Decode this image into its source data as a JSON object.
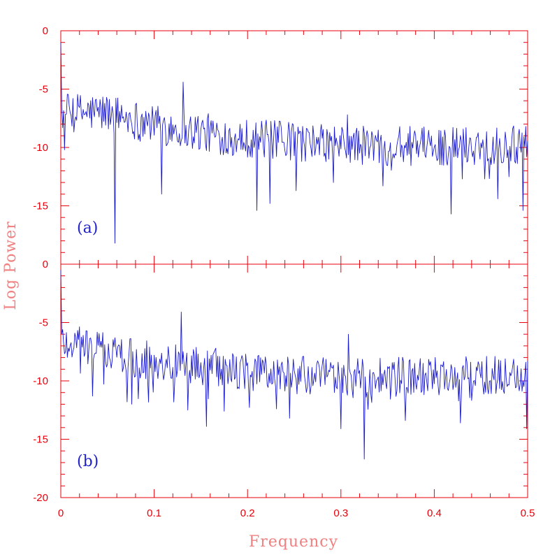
{
  "chart_data": [
    {
      "type": "line",
      "panel_label": "(a)",
      "xlim": [
        0,
        0.5
      ],
      "ylim": [
        -20,
        0
      ],
      "y_ticks": [
        0,
        -5,
        -10,
        -15
      ],
      "x_ticks": [
        0,
        0.1,
        0.2,
        0.3,
        0.4,
        0.5
      ],
      "series": [
        {
          "color": "#1a1acc",
          "spikes": [
            {
              "x": 0.0,
              "y": -1.0
            },
            {
              "x": 0.004,
              "y": -10.2
            },
            {
              "x": 0.058,
              "y": -18.2
            },
            {
              "x": 0.108,
              "y": -14.0
            },
            {
              "x": 0.131,
              "y": -4.4
            },
            {
              "x": 0.21,
              "y": -15.4
            },
            {
              "x": 0.224,
              "y": -14.8
            },
            {
              "x": 0.252,
              "y": -13.7
            },
            {
              "x": 0.292,
              "y": -13.0
            },
            {
              "x": 0.307,
              "y": -7.2
            },
            {
              "x": 0.345,
              "y": -13.3
            },
            {
              "x": 0.418,
              "y": -15.7
            },
            {
              "x": 0.468,
              "y": -14.4
            },
            {
              "x": 0.495,
              "y": -15.4
            }
          ],
          "trend": [
            {
              "x": 0.0,
              "y": -7.0
            },
            {
              "x": 0.05,
              "y": -7.0
            },
            {
              "x": 0.1,
              "y": -8.0
            },
            {
              "x": 0.15,
              "y": -8.7
            },
            {
              "x": 0.2,
              "y": -9.2
            },
            {
              "x": 0.3,
              "y": -9.8
            },
            {
              "x": 0.4,
              "y": -9.9
            },
            {
              "x": 0.5,
              "y": -9.7
            }
          ]
        }
      ]
    },
    {
      "type": "line",
      "panel_label": "(b)",
      "xlim": [
        0,
        0.5
      ],
      "ylim": [
        -20,
        0
      ],
      "y_ticks": [
        0,
        -5,
        -10,
        -15,
        -20
      ],
      "x_ticks": [
        0,
        0.1,
        0.2,
        0.3,
        0.4,
        0.5
      ],
      "series": [
        {
          "color": "#1a1acc",
          "spikes": [
            {
              "x": 0.0,
              "y": -0.5
            },
            {
              "x": 0.034,
              "y": -11.3
            },
            {
              "x": 0.076,
              "y": -12.0
            },
            {
              "x": 0.129,
              "y": -4.1
            },
            {
              "x": 0.136,
              "y": -12.5
            },
            {
              "x": 0.156,
              "y": -13.9
            },
            {
              "x": 0.175,
              "y": -12.6
            },
            {
              "x": 0.231,
              "y": -12.4
            },
            {
              "x": 0.245,
              "y": -13.2
            },
            {
              "x": 0.3,
              "y": -14.1
            },
            {
              "x": 0.308,
              "y": -6.0
            },
            {
              "x": 0.325,
              "y": -16.7
            },
            {
              "x": 0.369,
              "y": -13.4
            },
            {
              "x": 0.428,
              "y": -13.6
            },
            {
              "x": 0.499,
              "y": -14.1
            }
          ],
          "trend": [
            {
              "x": 0.0,
              "y": -6.5
            },
            {
              "x": 0.05,
              "y": -7.5
            },
            {
              "x": 0.1,
              "y": -8.3
            },
            {
              "x": 0.15,
              "y": -8.7
            },
            {
              "x": 0.2,
              "y": -9.2
            },
            {
              "x": 0.3,
              "y": -9.8
            },
            {
              "x": 0.4,
              "y": -9.6
            },
            {
              "x": 0.5,
              "y": -9.5
            }
          ]
        }
      ]
    }
  ],
  "axes": {
    "xlabel": "Frequency",
    "ylabel": "Log Power"
  },
  "colors": {
    "axis": "#e8000b",
    "series": "#1a1acc",
    "axis_title": "#f08080"
  }
}
